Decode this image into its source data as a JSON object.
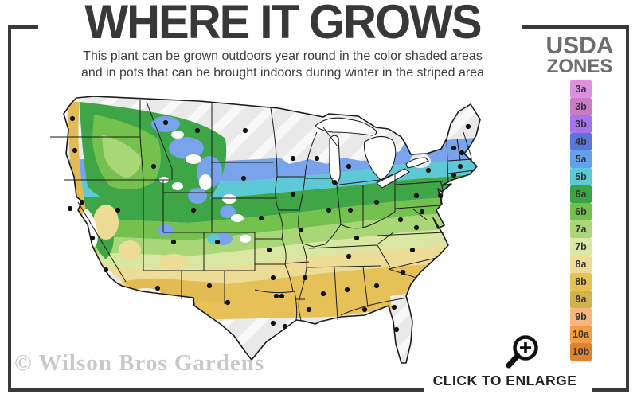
{
  "title": "WHERE IT GROWS",
  "subtitle": {
    "line1": "This plant can be grown outdoors year round in the color shaded areas",
    "line2": "and in pots that can be brought indoors during winter in the striped area"
  },
  "legend": {
    "title_line1": "USDA",
    "title_line2": "ZONES",
    "zones": [
      {
        "label": "3a",
        "color": "#de8fdf"
      },
      {
        "label": "3b",
        "color": "#cb7cc7"
      },
      {
        "label": "3b",
        "color": "#a674ec"
      },
      {
        "label": "4b",
        "color": "#5a75dc"
      },
      {
        "label": "5a",
        "color": "#64a1ed"
      },
      {
        "label": "5b",
        "color": "#5cc9d7"
      },
      {
        "label": "6a",
        "color": "#3ba442"
      },
      {
        "label": "6b",
        "color": "#72c14c"
      },
      {
        "label": "7a",
        "color": "#aad677"
      },
      {
        "label": "7b",
        "color": "#dbe8a5"
      },
      {
        "label": "8a",
        "color": "#eedc96"
      },
      {
        "label": "8b",
        "color": "#e6c253"
      },
      {
        "label": "9a",
        "color": "#d1b34a"
      },
      {
        "label": "9b",
        "color": "#f5b77d"
      },
      {
        "label": "10a",
        "color": "#f19d42"
      },
      {
        "label": "10b",
        "color": "#e08130"
      }
    ]
  },
  "map": {
    "description": "USDA hardiness zone map of the continental United States; color shaded growing range with striped gray areas outside the range",
    "band_colors": {
      "out_of_range_gray": "#e9e9e9",
      "stripe_white": "#ffffff",
      "zone5a_blue": "#79a3ea",
      "zone5b_cyan": "#5ec9d6",
      "zone6a_green": "#3fa648",
      "zone6b_midgreen": "#74c14e",
      "zone7a_lightgreen": "#a9d677",
      "zone7b_palegreen": "#d9e7a2",
      "zone8a_tan": "#eddc95",
      "zone8b_gold": "#e5c157"
    },
    "border_color": "#1a1a1a",
    "dot_color": "#111111",
    "city_dots": [
      [
        33,
        35
      ],
      [
        36,
        75
      ],
      [
        135,
        95
      ],
      [
        150,
        40
      ],
      [
        190,
        50
      ],
      [
        250,
        50
      ],
      [
        248,
        110
      ],
      [
        310,
        85
      ],
      [
        185,
        150
      ],
      [
        90,
        150
      ],
      [
        160,
        190
      ],
      [
        30,
        148
      ],
      [
        45,
        140
      ],
      [
        58,
        185
      ],
      [
        75,
        225
      ],
      [
        215,
        190
      ],
      [
        270,
        160
      ],
      [
        280,
        200
      ],
      [
        310,
        130
      ],
      [
        320,
        175
      ],
      [
        340,
        85
      ],
      [
        362,
        115
      ],
      [
        355,
        150
      ],
      [
        382,
        150
      ],
      [
        380,
        95
      ],
      [
        415,
        140
      ],
      [
        390,
        185
      ],
      [
        380,
        208
      ],
      [
        325,
        235
      ],
      [
        285,
        235
      ],
      [
        289,
        258
      ],
      [
        296,
        258
      ],
      [
        285,
        292
      ],
      [
        300,
        296
      ],
      [
        228,
        266
      ],
      [
        205,
        245
      ],
      [
        140,
        248
      ],
      [
        330,
        275
      ],
      [
        348,
        255
      ],
      [
        378,
        250
      ],
      [
        415,
        245
      ],
      [
        400,
        275
      ],
      [
        437,
        272
      ],
      [
        440,
        300
      ],
      [
        448,
        228
      ],
      [
        460,
        200
      ],
      [
        465,
        172
      ],
      [
        445,
        162
      ],
      [
        465,
        132
      ],
      [
        480,
        100
      ],
      [
        495,
        132
      ],
      [
        472,
        152
      ],
      [
        512,
        72
      ],
      [
        522,
        78
      ],
      [
        530,
        45
      ],
      [
        520,
        95
      ],
      [
        512,
        106
      ]
    ]
  },
  "watermark": {
    "text": "© Wilson Bros Gardens"
  },
  "enlarge": {
    "label": "CLICK TO ENLARGE",
    "icon": "magnifier-plus-icon"
  },
  "colors": {
    "frame": "#3a3a3a",
    "title_text": "#383838",
    "subtitle_text": "#3d3d3d",
    "legend_title_text": "#6e6e6e",
    "watermark_text": "#c9c9c9",
    "enlarge_text": "#222222"
  }
}
